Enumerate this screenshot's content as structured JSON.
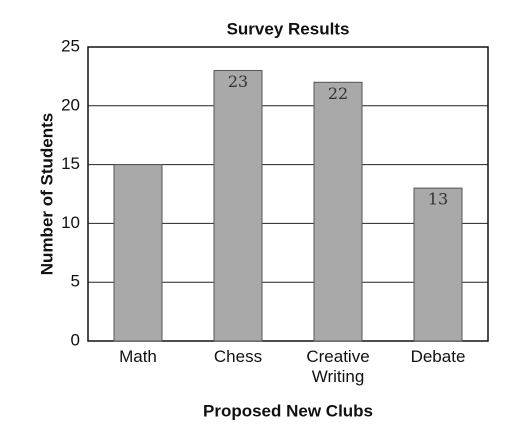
{
  "chart_data": {
    "type": "bar",
    "title": "Survey Results",
    "x_label": "Proposed New Clubs",
    "y_label": "Number of Students",
    "categories": [
      "Math",
      "Chess",
      "Creative Writing",
      "Debate"
    ],
    "values": [
      15,
      23,
      22,
      13
    ],
    "value_labels": [
      null,
      "23",
      "22",
      "13"
    ],
    "color": "#a9a9a9",
    "ylim": [
      0,
      25
    ],
    "yticks": [
      0,
      5,
      10,
      15,
      20,
      25
    ],
    "grid": true
  }
}
